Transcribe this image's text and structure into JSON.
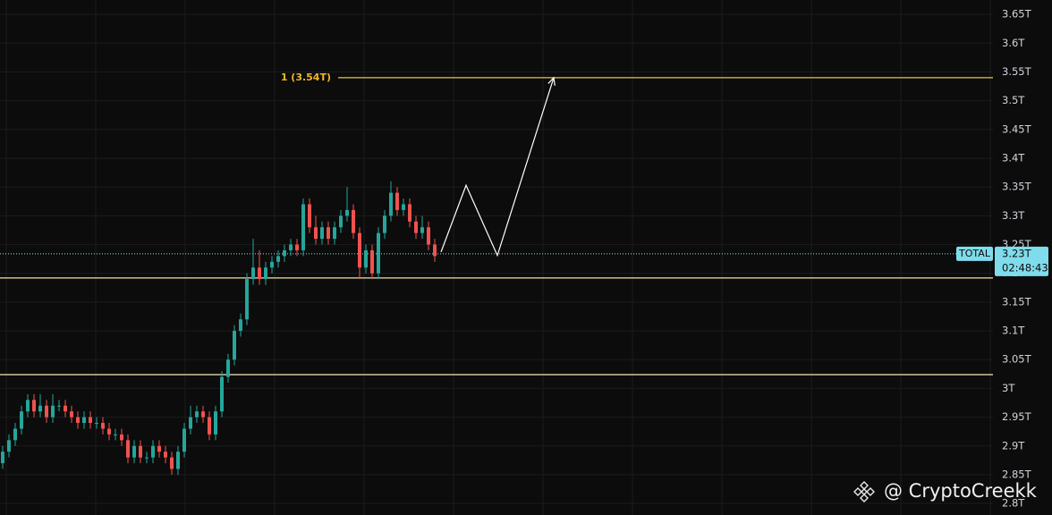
{
  "chart_data": {
    "type": "candlestick",
    "name": "TOTAL",
    "up_color": "#26a69a",
    "down_color": "#ef5350",
    "ylim": [
      2.78,
      3.675
    ],
    "yticks": [
      {
        "value": 2.8,
        "label": "2.8T"
      },
      {
        "value": 2.85,
        "label": "2.85T"
      },
      {
        "value": 2.9,
        "label": "2.9T"
      },
      {
        "value": 2.95,
        "label": "2.95T"
      },
      {
        "value": 3,
        "label": "3T"
      },
      {
        "value": 3.05,
        "label": "3.05T"
      },
      {
        "value": 3.1,
        "label": "3.1T"
      },
      {
        "value": 3.15,
        "label": "3.15T"
      },
      {
        "value": 3.2,
        "label": "3.2T"
      },
      {
        "value": 3.25,
        "label": "3.25T"
      },
      {
        "value": 3.3,
        "label": "3.3T"
      },
      {
        "value": 3.35,
        "label": "3.35T"
      },
      {
        "value": 3.4,
        "label": "3.4T"
      },
      {
        "value": 3.45,
        "label": "3.45T"
      },
      {
        "value": 3.5,
        "label": "3.5T"
      },
      {
        "value": 3.55,
        "label": "3.55T"
      },
      {
        "value": 3.6,
        "label": "3.6T"
      },
      {
        "value": 3.65,
        "label": "3.65T"
      }
    ],
    "grid": true,
    "ohlc": [
      [
        2.87,
        2.9,
        2.86,
        2.89
      ],
      [
        2.89,
        2.92,
        2.88,
        2.91
      ],
      [
        2.91,
        2.94,
        2.9,
        2.93
      ],
      [
        2.93,
        2.97,
        2.92,
        2.96
      ],
      [
        2.96,
        2.99,
        2.95,
        2.98
      ],
      [
        2.98,
        2.99,
        2.95,
        2.96
      ],
      [
        2.96,
        2.99,
        2.95,
        2.97
      ],
      [
        2.97,
        2.98,
        2.94,
        2.95
      ],
      [
        2.95,
        2.99,
        2.94,
        2.97
      ],
      [
        2.97,
        2.98,
        2.96,
        2.97
      ],
      [
        2.97,
        2.98,
        2.95,
        2.96
      ],
      [
        2.96,
        2.97,
        2.94,
        2.95
      ],
      [
        2.95,
        2.96,
        2.93,
        2.94
      ],
      [
        2.94,
        2.96,
        2.93,
        2.95
      ],
      [
        2.95,
        2.96,
        2.93,
        2.94
      ],
      [
        2.94,
        2.95,
        2.93,
        2.94
      ],
      [
        2.94,
        2.95,
        2.92,
        2.93
      ],
      [
        2.93,
        2.94,
        2.91,
        2.92
      ],
      [
        2.92,
        2.93,
        2.91,
        2.92
      ],
      [
        2.92,
        2.93,
        2.9,
        2.91
      ],
      [
        2.91,
        2.92,
        2.87,
        2.88
      ],
      [
        2.88,
        2.91,
        2.87,
        2.9
      ],
      [
        2.9,
        2.91,
        2.87,
        2.88
      ],
      [
        2.88,
        2.89,
        2.87,
        2.88
      ],
      [
        2.88,
        2.91,
        2.87,
        2.9
      ],
      [
        2.9,
        2.91,
        2.88,
        2.89
      ],
      [
        2.89,
        2.9,
        2.87,
        2.88
      ],
      [
        2.88,
        2.89,
        2.85,
        2.86
      ],
      [
        2.86,
        2.9,
        2.85,
        2.89
      ],
      [
        2.89,
        2.94,
        2.88,
        2.93
      ],
      [
        2.93,
        2.97,
        2.92,
        2.95
      ],
      [
        2.95,
        2.97,
        2.94,
        2.96
      ],
      [
        2.96,
        2.97,
        2.94,
        2.95
      ],
      [
        2.95,
        2.96,
        2.91,
        2.92
      ],
      [
        2.92,
        2.97,
        2.91,
        2.96
      ],
      [
        2.96,
        3.03,
        2.95,
        3.02
      ],
      [
        3.02,
        3.06,
        3.01,
        3.05
      ],
      [
        3.05,
        3.11,
        3.04,
        3.1
      ],
      [
        3.1,
        3.13,
        3.09,
        3.12
      ],
      [
        3.12,
        3.2,
        3.11,
        3.19
      ],
      [
        3.19,
        3.26,
        3.18,
        3.21
      ],
      [
        3.21,
        3.24,
        3.18,
        3.19
      ],
      [
        3.19,
        3.22,
        3.18,
        3.21
      ],
      [
        3.21,
        3.23,
        3.2,
        3.22
      ],
      [
        3.22,
        3.24,
        3.21,
        3.23
      ],
      [
        3.23,
        3.25,
        3.22,
        3.24
      ],
      [
        3.24,
        3.26,
        3.23,
        3.25
      ],
      [
        3.25,
        3.26,
        3.23,
        3.24
      ],
      [
        3.24,
        3.33,
        3.23,
        3.32
      ],
      [
        3.32,
        3.33,
        3.27,
        3.28
      ],
      [
        3.28,
        3.3,
        3.25,
        3.26
      ],
      [
        3.26,
        3.29,
        3.25,
        3.28
      ],
      [
        3.28,
        3.29,
        3.25,
        3.26
      ],
      [
        3.26,
        3.29,
        3.25,
        3.28
      ],
      [
        3.28,
        3.31,
        3.27,
        3.3
      ],
      [
        3.3,
        3.35,
        3.29,
        3.31
      ],
      [
        3.31,
        3.32,
        3.26,
        3.27
      ],
      [
        3.27,
        3.28,
        3.19,
        3.21
      ],
      [
        3.21,
        3.25,
        3.2,
        3.24
      ],
      [
        3.24,
        3.25,
        3.19,
        3.2
      ],
      [
        3.2,
        3.28,
        3.19,
        3.27
      ],
      [
        3.27,
        3.31,
        3.26,
        3.3
      ],
      [
        3.3,
        3.36,
        3.29,
        3.34
      ],
      [
        3.34,
        3.35,
        3.3,
        3.31
      ],
      [
        3.31,
        3.33,
        3.3,
        3.32
      ],
      [
        3.32,
        3.33,
        3.28,
        3.29
      ],
      [
        3.29,
        3.3,
        3.26,
        3.27
      ],
      [
        3.27,
        3.3,
        3.26,
        3.28
      ],
      [
        3.28,
        3.29,
        3.24,
        3.25
      ],
      [
        3.25,
        3.26,
        3.22,
        3.23
      ]
    ],
    "levels": [
      {
        "value": 3.54,
        "label": "1 (3.54T)",
        "color": "#e8c547"
      },
      {
        "value": 3.192,
        "color": "#f2e4a6"
      },
      {
        "value": 3.024,
        "color": "#f2e8bc"
      }
    ],
    "projection": {
      "x": [
        70,
        74,
        79,
        88
      ],
      "values": [
        3.237,
        3.353,
        3.231,
        3.54
      ],
      "color": "#ffffff"
    },
    "last": {
      "value": 3.234,
      "label": "3.23T",
      "countdown": "02:48:43",
      "color": "#7fdcec"
    },
    "watermark": "@ CryptoCreekk"
  }
}
